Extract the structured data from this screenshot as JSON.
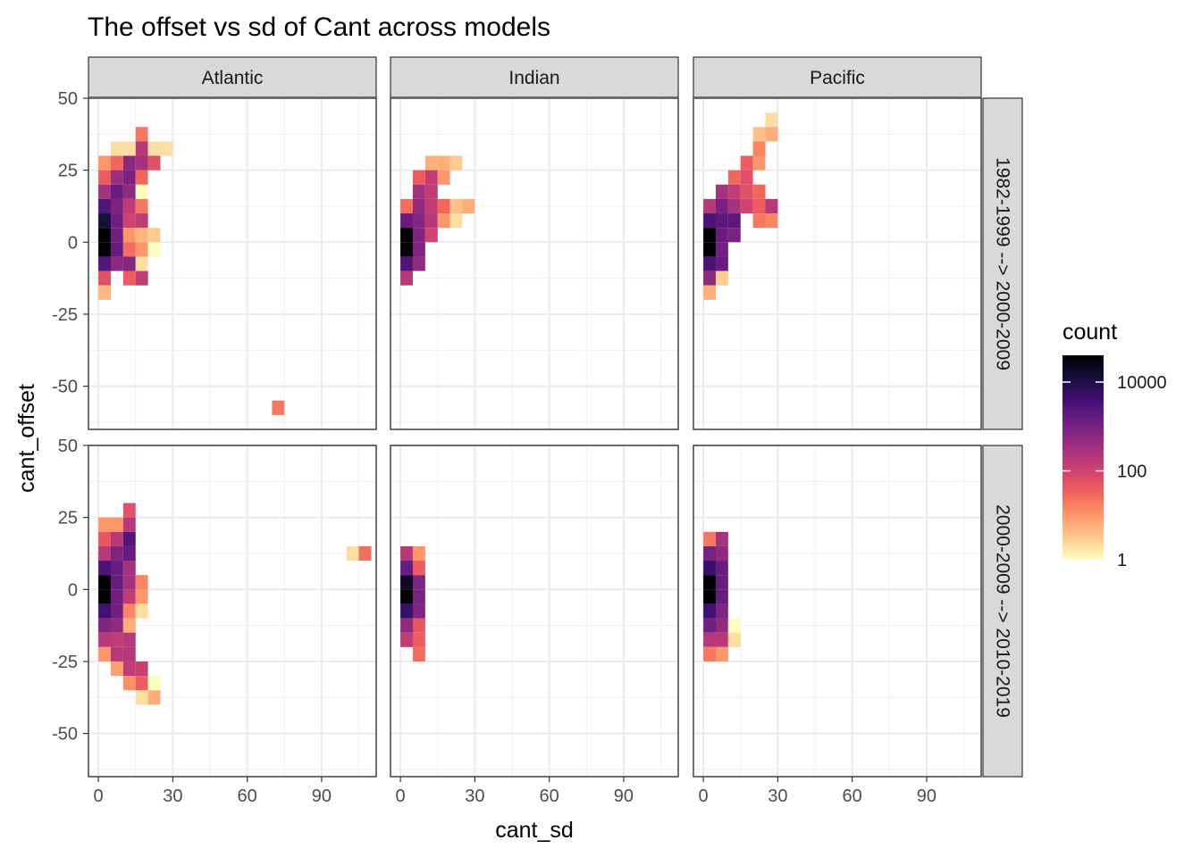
{
  "chart_data": {
    "type": "heatmap",
    "title": "The offset vs sd of Cant across models",
    "xlabel": "cant_sd",
    "ylabel": "cant_offset",
    "columns": [
      "Atlantic",
      "Indian",
      "Pacific"
    ],
    "rows": [
      "1982-1999 --> 2000-2009",
      "2000-2009 --> 2010-2019"
    ],
    "xlim": [
      -4,
      112
    ],
    "ylim": [
      -65,
      50
    ],
    "xticks": [
      0,
      30,
      60,
      90
    ],
    "yticks": [
      50,
      25,
      0,
      -25,
      -50
    ],
    "bin_width_x": 5,
    "bin_width_y": 5,
    "scale": "log10",
    "legend": {
      "title": "count",
      "position": "right",
      "ticks": [
        10000,
        100,
        1
      ],
      "tick_labels": [
        "10000",
        "100",
        "1"
      ],
      "max_count": 40000,
      "colors": [
        "#fcfdbf",
        "#fec98d",
        "#fd9567",
        "#f1605d",
        "#cd4071",
        "#9e2f7f",
        "#721f81",
        "#440f76",
        "#180f3d",
        "#000004"
      ]
    },
    "panels": [
      {
        "column": "Atlantic",
        "row": "1982-1999 --> 2000-2009",
        "cells": [
          {
            "x": 17.5,
            "y": 37.5,
            "c": 20
          },
          {
            "x": 7.5,
            "y": 32.5,
            "c": 2
          },
          {
            "x": 12.5,
            "y": 32.5,
            "c": 2
          },
          {
            "x": 17.5,
            "y": 32.5,
            "c": 200
          },
          {
            "x": 22.5,
            "y": 32.5,
            "c": 2
          },
          {
            "x": 27.5,
            "y": 32.5,
            "c": 2
          },
          {
            "x": 2.5,
            "y": 27.5,
            "c": 10
          },
          {
            "x": 7.5,
            "y": 27.5,
            "c": 30
          },
          {
            "x": 12.5,
            "y": 27.5,
            "c": 600
          },
          {
            "x": 17.5,
            "y": 27.5,
            "c": 300
          },
          {
            "x": 22.5,
            "y": 27.5,
            "c": 60
          },
          {
            "x": 2.5,
            "y": 22.5,
            "c": 40
          },
          {
            "x": 7.5,
            "y": 22.5,
            "c": 400
          },
          {
            "x": 12.5,
            "y": 22.5,
            "c": 900
          },
          {
            "x": 17.5,
            "y": 22.5,
            "c": 30
          },
          {
            "x": 2.5,
            "y": 17.5,
            "c": 300
          },
          {
            "x": 7.5,
            "y": 17.5,
            "c": 1500
          },
          {
            "x": 12.5,
            "y": 17.5,
            "c": 500
          },
          {
            "x": 17.5,
            "y": 17.5,
            "c": 1
          },
          {
            "x": 2.5,
            "y": 12.5,
            "c": 2500
          },
          {
            "x": 7.5,
            "y": 12.5,
            "c": 900
          },
          {
            "x": 12.5,
            "y": 12.5,
            "c": 150
          },
          {
            "x": 17.5,
            "y": 12.5,
            "c": 20
          },
          {
            "x": 2.5,
            "y": 7.5,
            "c": 12000
          },
          {
            "x": 7.5,
            "y": 7.5,
            "c": 1200
          },
          {
            "x": 12.5,
            "y": 7.5,
            "c": 100
          },
          {
            "x": 17.5,
            "y": 7.5,
            "c": 150
          },
          {
            "x": 2.5,
            "y": 2.5,
            "c": 40000
          },
          {
            "x": 7.5,
            "y": 2.5,
            "c": 1200
          },
          {
            "x": 12.5,
            "y": 2.5,
            "c": 10
          },
          {
            "x": 17.5,
            "y": 2.5,
            "c": 5
          },
          {
            "x": 22.5,
            "y": 2.5,
            "c": 3
          },
          {
            "x": 2.5,
            "y": -2.5,
            "c": 40000
          },
          {
            "x": 7.5,
            "y": -2.5,
            "c": 1500
          },
          {
            "x": 12.5,
            "y": -2.5,
            "c": 25
          },
          {
            "x": 17.5,
            "y": -2.5,
            "c": 10
          },
          {
            "x": 22.5,
            "y": -2.5,
            "c": 1
          },
          {
            "x": 2.5,
            "y": -7.5,
            "c": 2500
          },
          {
            "x": 7.5,
            "y": -7.5,
            "c": 600
          },
          {
            "x": 12.5,
            "y": -7.5,
            "c": 700
          },
          {
            "x": 17.5,
            "y": -7.5,
            "c": 2
          },
          {
            "x": 2.5,
            "y": -12.5,
            "c": 60
          },
          {
            "x": 12.5,
            "y": -12.5,
            "c": 40
          },
          {
            "x": 17.5,
            "y": -12.5,
            "c": 150
          },
          {
            "x": 2.5,
            "y": -17.5,
            "c": 5
          },
          {
            "x": 72.5,
            "y": -57.5,
            "c": 20
          }
        ]
      },
      {
        "column": "Indian",
        "row": "1982-1999 --> 2000-2009",
        "cells": [
          {
            "x": 12.5,
            "y": 27.5,
            "c": 6
          },
          {
            "x": 17.5,
            "y": 27.5,
            "c": 6
          },
          {
            "x": 22.5,
            "y": 27.5,
            "c": 3
          },
          {
            "x": 7.5,
            "y": 22.5,
            "c": 40
          },
          {
            "x": 12.5,
            "y": 22.5,
            "c": 150
          },
          {
            "x": 17.5,
            "y": 22.5,
            "c": 10
          },
          {
            "x": 7.5,
            "y": 17.5,
            "c": 300
          },
          {
            "x": 12.5,
            "y": 17.5,
            "c": 150
          },
          {
            "x": 2.5,
            "y": 12.5,
            "c": 25
          },
          {
            "x": 7.5,
            "y": 12.5,
            "c": 500
          },
          {
            "x": 12.5,
            "y": 12.5,
            "c": 150
          },
          {
            "x": 17.5,
            "y": 12.5,
            "c": 30
          },
          {
            "x": 22.5,
            "y": 12.5,
            "c": 4
          },
          {
            "x": 27.5,
            "y": 12.5,
            "c": 6
          },
          {
            "x": 2.5,
            "y": 7.5,
            "c": 1500
          },
          {
            "x": 7.5,
            "y": 7.5,
            "c": 700
          },
          {
            "x": 12.5,
            "y": 7.5,
            "c": 200
          },
          {
            "x": 17.5,
            "y": 7.5,
            "c": 10
          },
          {
            "x": 22.5,
            "y": 7.5,
            "c": 2
          },
          {
            "x": 2.5,
            "y": 2.5,
            "c": 40000
          },
          {
            "x": 7.5,
            "y": 2.5,
            "c": 800
          },
          {
            "x": 12.5,
            "y": 2.5,
            "c": 100
          },
          {
            "x": 2.5,
            "y": -2.5,
            "c": 40000
          },
          {
            "x": 7.5,
            "y": -2.5,
            "c": 800
          },
          {
            "x": 2.5,
            "y": -7.5,
            "c": 2500
          },
          {
            "x": 7.5,
            "y": -7.5,
            "c": 500
          },
          {
            "x": 2.5,
            "y": -12.5,
            "c": 200
          }
        ]
      },
      {
        "column": "Pacific",
        "row": "1982-1999 --> 2000-2009",
        "cells": [
          {
            "x": 27.5,
            "y": 42.5,
            "c": 2
          },
          {
            "x": 22.5,
            "y": 37.5,
            "c": 4
          },
          {
            "x": 27.5,
            "y": 37.5,
            "c": 6
          },
          {
            "x": 22.5,
            "y": 32.5,
            "c": 15
          },
          {
            "x": 17.5,
            "y": 27.5,
            "c": 40
          },
          {
            "x": 22.5,
            "y": 27.5,
            "c": 10
          },
          {
            "x": 12.5,
            "y": 22.5,
            "c": 30
          },
          {
            "x": 17.5,
            "y": 22.5,
            "c": 60
          },
          {
            "x": 7.5,
            "y": 17.5,
            "c": 300
          },
          {
            "x": 12.5,
            "y": 17.5,
            "c": 150
          },
          {
            "x": 17.5,
            "y": 17.5,
            "c": 60
          },
          {
            "x": 22.5,
            "y": 17.5,
            "c": 30
          },
          {
            "x": 2.5,
            "y": 12.5,
            "c": 200
          },
          {
            "x": 7.5,
            "y": 12.5,
            "c": 1000
          },
          {
            "x": 12.5,
            "y": 12.5,
            "c": 300
          },
          {
            "x": 17.5,
            "y": 12.5,
            "c": 100
          },
          {
            "x": 22.5,
            "y": 12.5,
            "c": 40
          },
          {
            "x": 27.5,
            "y": 12.5,
            "c": 200
          },
          {
            "x": 2.5,
            "y": 7.5,
            "c": 3000
          },
          {
            "x": 7.5,
            "y": 7.5,
            "c": 2000
          },
          {
            "x": 12.5,
            "y": 7.5,
            "c": 2000
          },
          {
            "x": 22.5,
            "y": 7.5,
            "c": 20
          },
          {
            "x": 27.5,
            "y": 7.5,
            "c": 15
          },
          {
            "x": 2.5,
            "y": 2.5,
            "c": 40000
          },
          {
            "x": 7.5,
            "y": 2.5,
            "c": 1500
          },
          {
            "x": 12.5,
            "y": 2.5,
            "c": 1000
          },
          {
            "x": 2.5,
            "y": -2.5,
            "c": 40000
          },
          {
            "x": 7.5,
            "y": -2.5,
            "c": 1200
          },
          {
            "x": 2.5,
            "y": -7.5,
            "c": 3000
          },
          {
            "x": 7.5,
            "y": -7.5,
            "c": 1500
          },
          {
            "x": 2.5,
            "y": -12.5,
            "c": 600
          },
          {
            "x": 7.5,
            "y": -12.5,
            "c": 3
          },
          {
            "x": 2.5,
            "y": -17.5,
            "c": 6
          }
        ]
      },
      {
        "column": "Atlantic",
        "row": "2000-2009 --> 2010-2019",
        "cells": [
          {
            "x": 12.5,
            "y": 27.5,
            "c": 60
          },
          {
            "x": 2.5,
            "y": 22.5,
            "c": 10
          },
          {
            "x": 7.5,
            "y": 22.5,
            "c": 10
          },
          {
            "x": 12.5,
            "y": 22.5,
            "c": 200
          },
          {
            "x": 2.5,
            "y": 17.5,
            "c": 50
          },
          {
            "x": 7.5,
            "y": 17.5,
            "c": 200
          },
          {
            "x": 12.5,
            "y": 17.5,
            "c": 2500
          },
          {
            "x": 2.5,
            "y": 12.5,
            "c": 200
          },
          {
            "x": 7.5,
            "y": 12.5,
            "c": 800
          },
          {
            "x": 12.5,
            "y": 12.5,
            "c": 1500
          },
          {
            "x": 2.5,
            "y": 7.5,
            "c": 3000
          },
          {
            "x": 7.5,
            "y": 7.5,
            "c": 1500
          },
          {
            "x": 12.5,
            "y": 7.5,
            "c": 300
          },
          {
            "x": 2.5,
            "y": 2.5,
            "c": 40000
          },
          {
            "x": 7.5,
            "y": 2.5,
            "c": 1500
          },
          {
            "x": 12.5,
            "y": 2.5,
            "c": 300
          },
          {
            "x": 17.5,
            "y": 2.5,
            "c": 15
          },
          {
            "x": 2.5,
            "y": -2.5,
            "c": 40000
          },
          {
            "x": 7.5,
            "y": -2.5,
            "c": 1200
          },
          {
            "x": 12.5,
            "y": -2.5,
            "c": 150
          },
          {
            "x": 17.5,
            "y": -2.5,
            "c": 10
          },
          {
            "x": 2.5,
            "y": -7.5,
            "c": 4000
          },
          {
            "x": 7.5,
            "y": -7.5,
            "c": 1200
          },
          {
            "x": 12.5,
            "y": -7.5,
            "c": 15
          },
          {
            "x": 17.5,
            "y": -7.5,
            "c": 2
          },
          {
            "x": 2.5,
            "y": -12.5,
            "c": 800
          },
          {
            "x": 7.5,
            "y": -12.5,
            "c": 500
          },
          {
            "x": 12.5,
            "y": -12.5,
            "c": 6
          },
          {
            "x": 2.5,
            "y": -17.5,
            "c": 200
          },
          {
            "x": 7.5,
            "y": -17.5,
            "c": 150
          },
          {
            "x": 12.5,
            "y": -17.5,
            "c": 200
          },
          {
            "x": 2.5,
            "y": -22.5,
            "c": 10
          },
          {
            "x": 7.5,
            "y": -22.5,
            "c": 200
          },
          {
            "x": 12.5,
            "y": -22.5,
            "c": 200
          },
          {
            "x": 7.5,
            "y": -27.5,
            "c": 8
          },
          {
            "x": 12.5,
            "y": -27.5,
            "c": 150
          },
          {
            "x": 17.5,
            "y": -27.5,
            "c": 120
          },
          {
            "x": 12.5,
            "y": -32.5,
            "c": 12
          },
          {
            "x": 17.5,
            "y": -32.5,
            "c": 40
          },
          {
            "x": 22.5,
            "y": -32.5,
            "c": 1
          },
          {
            "x": 17.5,
            "y": -37.5,
            "c": 2
          },
          {
            "x": 22.5,
            "y": -37.5,
            "c": 6
          },
          {
            "x": 102.5,
            "y": 12.5,
            "c": 2
          },
          {
            "x": 107.5,
            "y": 12.5,
            "c": 25
          }
        ]
      },
      {
        "column": "Indian",
        "row": "2000-2009 --> 2010-2019",
        "cells": [
          {
            "x": 2.5,
            "y": 12.5,
            "c": 200
          },
          {
            "x": 7.5,
            "y": 12.5,
            "c": 10
          },
          {
            "x": 2.5,
            "y": 7.5,
            "c": 1500
          },
          {
            "x": 7.5,
            "y": 7.5,
            "c": 40
          },
          {
            "x": 2.5,
            "y": 2.5,
            "c": 20000
          },
          {
            "x": 7.5,
            "y": 2.5,
            "c": 800
          },
          {
            "x": 2.5,
            "y": -2.5,
            "c": 40000
          },
          {
            "x": 7.5,
            "y": -2.5,
            "c": 1000
          },
          {
            "x": 2.5,
            "y": -7.5,
            "c": 5000
          },
          {
            "x": 7.5,
            "y": -7.5,
            "c": 800
          },
          {
            "x": 2.5,
            "y": -12.5,
            "c": 500
          },
          {
            "x": 7.5,
            "y": -12.5,
            "c": 50
          },
          {
            "x": 2.5,
            "y": -17.5,
            "c": 150
          },
          {
            "x": 7.5,
            "y": -17.5,
            "c": 40
          },
          {
            "x": 7.5,
            "y": -22.5,
            "c": 25
          }
        ]
      },
      {
        "column": "Pacific",
        "row": "2000-2009 --> 2010-2019",
        "cells": [
          {
            "x": 2.5,
            "y": 17.5,
            "c": 20
          },
          {
            "x": 7.5,
            "y": 17.5,
            "c": 300
          },
          {
            "x": 2.5,
            "y": 12.5,
            "c": 1000
          },
          {
            "x": 7.5,
            "y": 12.5,
            "c": 500
          },
          {
            "x": 2.5,
            "y": 7.5,
            "c": 5000
          },
          {
            "x": 7.5,
            "y": 7.5,
            "c": 1500
          },
          {
            "x": 2.5,
            "y": 2.5,
            "c": 40000
          },
          {
            "x": 7.5,
            "y": 2.5,
            "c": 1500
          },
          {
            "x": 2.5,
            "y": -2.5,
            "c": 40000
          },
          {
            "x": 7.5,
            "y": -2.5,
            "c": 1500
          },
          {
            "x": 2.5,
            "y": -7.5,
            "c": 4000
          },
          {
            "x": 7.5,
            "y": -7.5,
            "c": 800
          },
          {
            "x": 2.5,
            "y": -12.5,
            "c": 1200
          },
          {
            "x": 7.5,
            "y": -12.5,
            "c": 500
          },
          {
            "x": 12.5,
            "y": -12.5,
            "c": 1
          },
          {
            "x": 2.5,
            "y": -17.5,
            "c": 200
          },
          {
            "x": 7.5,
            "y": -17.5,
            "c": 200
          },
          {
            "x": 12.5,
            "y": -17.5,
            "c": 2
          },
          {
            "x": 2.5,
            "y": -22.5,
            "c": 20
          },
          {
            "x": 7.5,
            "y": -22.5,
            "c": 10
          }
        ]
      }
    ]
  }
}
